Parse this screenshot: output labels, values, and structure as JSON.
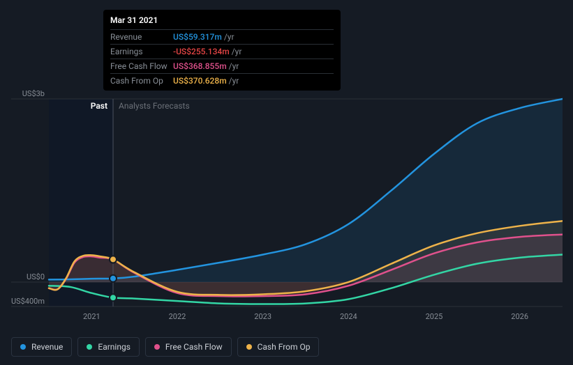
{
  "tooltip": {
    "date": "Mar 31 2021",
    "rows": [
      {
        "label": "Revenue",
        "value": "US$59.317m",
        "color": "#2394df",
        "suffix": "/yr"
      },
      {
        "label": "Earnings",
        "value": "-US$255.134m",
        "color": "#e64545",
        "suffix": "/yr"
      },
      {
        "label": "Free Cash Flow",
        "value": "US$368.855m",
        "color": "#e0518c",
        "suffix": "/yr"
      },
      {
        "label": "Cash From Op",
        "value": "US$370.628m",
        "color": "#eeb34a",
        "suffix": "/yr"
      }
    ]
  },
  "chart": {
    "type": "line",
    "background_color": "#151b24",
    "plot_background_left": "#101826",
    "plot_background_right": "#151b24",
    "grid_color": "#2a3038",
    "y_axis": {
      "min": -400,
      "max": 3000,
      "ticks": [
        {
          "v": 3000,
          "label": "US$3b"
        },
        {
          "v": 0,
          "label": "US$0"
        },
        {
          "v": -400,
          "label": "-US$400m"
        }
      ]
    },
    "x_axis": {
      "min": 2020.5,
      "max": 2026.5,
      "ticks": [
        2021,
        2022,
        2023,
        2024,
        2025,
        2026
      ],
      "split_at": 2021.25
    },
    "regions": {
      "past": "Past",
      "forecast": "Analysts Forecasts"
    },
    "series": [
      {
        "name": "Revenue",
        "color": "#2394df",
        "fill_opacity": 0.12,
        "line_width": 2.5,
        "marker_at": 2021.25,
        "data": [
          [
            2020.5,
            40
          ],
          [
            2020.75,
            45
          ],
          [
            2021.0,
            55
          ],
          [
            2021.25,
            59
          ],
          [
            2021.5,
            90
          ],
          [
            2022.0,
            200
          ],
          [
            2022.5,
            320
          ],
          [
            2023.0,
            450
          ],
          [
            2023.5,
            620
          ],
          [
            2024.0,
            950
          ],
          [
            2024.5,
            1500
          ],
          [
            2025.0,
            2100
          ],
          [
            2025.5,
            2600
          ],
          [
            2026.0,
            2850
          ],
          [
            2026.5,
            3000
          ]
        ]
      },
      {
        "name": "Earnings",
        "color": "#33d6a5",
        "fill_opacity": 0,
        "line_width": 2.5,
        "marker_at": 2021.25,
        "data": [
          [
            2020.5,
            -60
          ],
          [
            2020.75,
            -80
          ],
          [
            2021.0,
            -180
          ],
          [
            2021.25,
            -255
          ],
          [
            2021.5,
            -270
          ],
          [
            2022.0,
            -310
          ],
          [
            2022.5,
            -350
          ],
          [
            2023.0,
            -360
          ],
          [
            2023.5,
            -350
          ],
          [
            2024.0,
            -280
          ],
          [
            2024.5,
            -100
          ],
          [
            2025.0,
            120
          ],
          [
            2025.5,
            300
          ],
          [
            2026.0,
            400
          ],
          [
            2026.5,
            450
          ]
        ]
      },
      {
        "name": "Free Cash Flow",
        "color": "#e0518c",
        "fill_opacity": 0.1,
        "line_width": 2.5,
        "marker_at": 2021.25,
        "data": [
          [
            2020.5,
            -100
          ],
          [
            2020.6,
            -120
          ],
          [
            2020.7,
            50
          ],
          [
            2020.8,
            320
          ],
          [
            2020.9,
            410
          ],
          [
            2021.0,
            420
          ],
          [
            2021.1,
            400
          ],
          [
            2021.25,
            369
          ],
          [
            2021.5,
            150
          ],
          [
            2022.0,
            -180
          ],
          [
            2022.5,
            -230
          ],
          [
            2023.0,
            -230
          ],
          [
            2023.5,
            -200
          ],
          [
            2024.0,
            -60
          ],
          [
            2024.5,
            200
          ],
          [
            2025.0,
            470
          ],
          [
            2025.5,
            650
          ],
          [
            2026.0,
            740
          ],
          [
            2026.5,
            780
          ]
        ]
      },
      {
        "name": "Cash From Op",
        "color": "#eeb34a",
        "fill_opacity": 0.1,
        "line_width": 2.5,
        "marker_at": 2021.25,
        "data": [
          [
            2020.5,
            -100
          ],
          [
            2020.6,
            -120
          ],
          [
            2020.7,
            60
          ],
          [
            2020.8,
            340
          ],
          [
            2020.9,
            430
          ],
          [
            2021.0,
            440
          ],
          [
            2021.1,
            420
          ],
          [
            2021.25,
            371
          ],
          [
            2021.5,
            160
          ],
          [
            2022.0,
            -160
          ],
          [
            2022.5,
            -210
          ],
          [
            2023.0,
            -200
          ],
          [
            2023.5,
            -150
          ],
          [
            2024.0,
            0
          ],
          [
            2024.5,
            300
          ],
          [
            2025.0,
            600
          ],
          [
            2025.5,
            800
          ],
          [
            2026.0,
            920
          ],
          [
            2026.5,
            1000
          ]
        ]
      }
    ]
  },
  "legend": [
    {
      "label": "Revenue",
      "color": "#2394df"
    },
    {
      "label": "Earnings",
      "color": "#33d6a5"
    },
    {
      "label": "Free Cash Flow",
      "color": "#e0518c"
    },
    {
      "label": "Cash From Op",
      "color": "#eeb34a"
    }
  ]
}
